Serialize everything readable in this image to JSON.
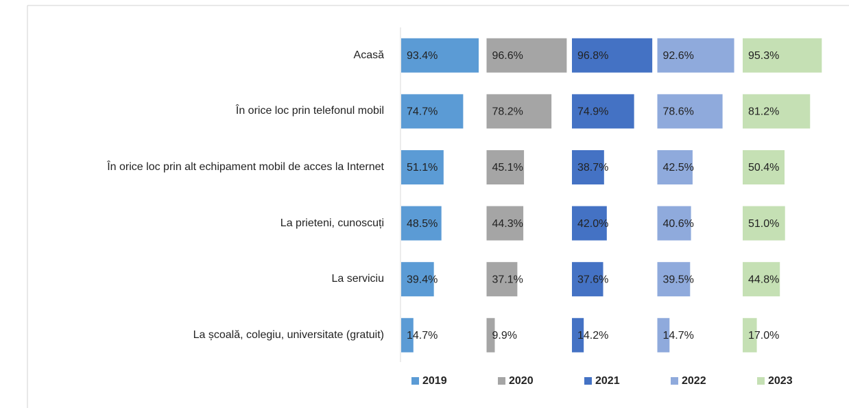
{
  "chart_data": {
    "type": "bar",
    "orientation": "horizontal",
    "categories": [
      "Acasă",
      "În orice loc prin telefonul mobil",
      "În orice loc prin alt echipament mobil de acces la Internet",
      "La prieteni, cunoscuți",
      "La serviciu",
      "La școală, colegiu, universitate (gratuit)"
    ],
    "series": [
      {
        "name": "2019",
        "color": "#5b9bd5",
        "values": [
          93.4,
          74.7,
          51.1,
          48.5,
          39.4,
          14.7
        ],
        "value_labels": [
          "93.4%",
          "74.7%",
          "51.1%",
          "48.5%",
          "39.4%",
          "14.7%"
        ]
      },
      {
        "name": "2020",
        "color": "#a5a5a5",
        "values": [
          96.6,
          78.2,
          45.1,
          44.3,
          37.1,
          9.9
        ],
        "value_labels": [
          "96.6%",
          "78.2%",
          "45.1%",
          "44.3%",
          "37.1%",
          "9.9%"
        ]
      },
      {
        "name": "2021",
        "color": "#4472c4",
        "values": [
          96.8,
          74.9,
          38.7,
          42.0,
          37.6,
          14.2
        ],
        "value_labels": [
          "96.8%",
          "74.9%",
          "38.7%",
          "42.0%",
          "37.6%",
          "14.2%"
        ]
      },
      {
        "name": "2022",
        "color": "#8faadc",
        "values": [
          92.6,
          78.6,
          42.5,
          40.6,
          39.5,
          14.7
        ],
        "value_labels": [
          "92.6%",
          "78.6%",
          "42.5%",
          "40.6%",
          "39.5%",
          "14.7%"
        ]
      },
      {
        "name": "2023",
        "color": "#c5e0b4",
        "values": [
          95.3,
          81.2,
          50.4,
          51.0,
          44.8,
          17.0
        ],
        "value_labels": [
          "95.3%",
          "81.2%",
          "50.4%",
          "51.0%",
          "44.8%",
          "17.0%"
        ]
      }
    ],
    "legend": "bottom"
  }
}
